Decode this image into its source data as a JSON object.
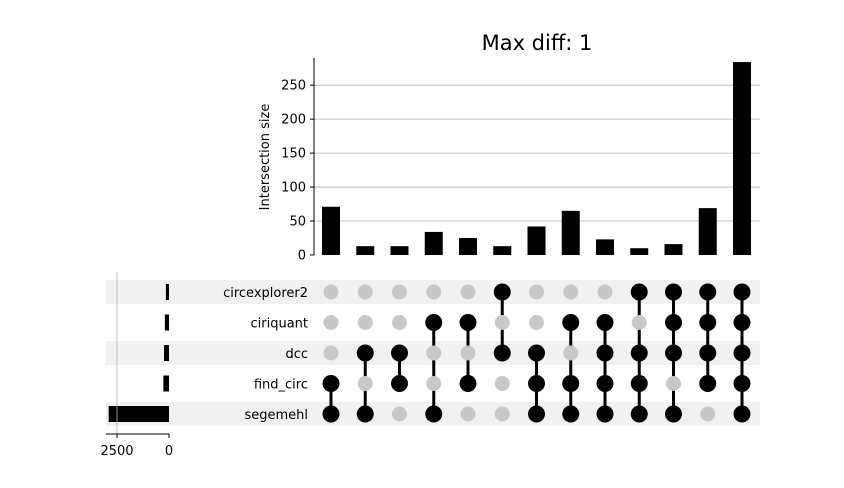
{
  "chart_data": {
    "type": "bar",
    "title": "Max diff: 1",
    "ylabel": "Intersection size",
    "ylim": [
      0,
      290
    ],
    "yticks": [
      0,
      50,
      100,
      150,
      200,
      250
    ],
    "grid": true,
    "sets": [
      "circexplorer2",
      "ciriquant",
      "dcc",
      "find_circ",
      "segemehl"
    ],
    "set_sizes": [
      150,
      200,
      240,
      270,
      2900
    ],
    "set_size_ticks": [
      2500,
      0
    ],
    "intersections": [
      {
        "members": [
          "find_circ",
          "segemehl"
        ],
        "size": 71
      },
      {
        "members": [
          "dcc",
          "segemehl"
        ],
        "size": 13
      },
      {
        "members": [
          "dcc",
          "find_circ"
        ],
        "size": 13
      },
      {
        "members": [
          "ciriquant",
          "segemehl"
        ],
        "size": 34
      },
      {
        "members": [
          "ciriquant",
          "find_circ"
        ],
        "size": 25
      },
      {
        "members": [
          "circexplorer2",
          "dcc"
        ],
        "size": 13
      },
      {
        "members": [
          "dcc",
          "find_circ",
          "segemehl"
        ],
        "size": 42
      },
      {
        "members": [
          "ciriquant",
          "find_circ",
          "segemehl"
        ],
        "size": 65
      },
      {
        "members": [
          "ciriquant",
          "dcc",
          "find_circ",
          "segemehl"
        ],
        "size": 23
      },
      {
        "members": [
          "circexplorer2",
          "dcc",
          "find_circ",
          "segemehl"
        ],
        "size": 10
      },
      {
        "members": [
          "circexplorer2",
          "ciriquant",
          "dcc",
          "segemehl"
        ],
        "size": 16
      },
      {
        "members": [
          "circexplorer2",
          "ciriquant",
          "dcc",
          "find_circ"
        ],
        "size": 69
      },
      {
        "members": [
          "circexplorer2",
          "ciriquant",
          "dcc",
          "find_circ",
          "segemehl"
        ],
        "size": 284
      }
    ]
  },
  "colors": {
    "bar": "#000000",
    "dot_active": "#000000",
    "dot_inactive": "#c8c8c8",
    "stripe": "#f1f1f1",
    "grid": "#b0b0b0"
  }
}
